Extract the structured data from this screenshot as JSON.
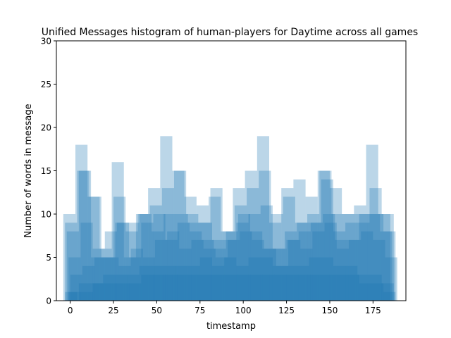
{
  "chart_data": {
    "type": "bar",
    "title": "Unified Messages histogram of human-players for Daytime across all games",
    "xlabel": "timestamp",
    "ylabel": "Number of words in message",
    "xlim": [
      -8,
      194
    ],
    "ylim": [
      0,
      30
    ],
    "x_ticks": [
      0,
      25,
      50,
      75,
      100,
      125,
      150,
      175
    ],
    "y_ticks": [
      0,
      5,
      10,
      15,
      20,
      25,
      30
    ],
    "x_tick_labels": [
      "0",
      "25",
      "50",
      "75",
      "100",
      "125",
      "150",
      "175"
    ],
    "y_tick_labels": [
      "0",
      "5",
      "10",
      "15",
      "20",
      "25",
      "30"
    ],
    "bar_color": "#1f77b4",
    "bar_opacity": 0.3,
    "grid": false,
    "bin_width": 7,
    "layers": [
      {
        "x": [
          -4,
          3,
          10,
          17,
          24,
          31,
          38,
          45,
          52,
          59,
          66,
          73,
          80,
          87,
          94,
          101,
          108,
          115,
          122,
          129,
          136,
          143,
          150,
          157,
          164,
          171,
          178
        ],
        "values": [
          10,
          18,
          12,
          6,
          16,
          5,
          10,
          13,
          19,
          15,
          12,
          11,
          12,
          8,
          13,
          15,
          19,
          9,
          13,
          14,
          12,
          15,
          13,
          10,
          11,
          18,
          10
        ]
      },
      {
        "x": [
          -3,
          4,
          11,
          18,
          25,
          32,
          39,
          46,
          53,
          60,
          67,
          74,
          81,
          88,
          95,
          102,
          109,
          116,
          123,
          130,
          137,
          144,
          151,
          158,
          165,
          172,
          179
        ],
        "values": [
          9,
          15,
          12,
          5,
          12,
          8,
          10,
          11,
          13,
          15,
          10,
          9,
          13,
          8,
          11,
          13,
          15,
          10,
          12,
          9,
          10,
          15,
          10,
          10,
          10,
          10,
          8
        ]
      },
      {
        "x": [
          -2,
          5,
          12,
          19,
          26,
          33,
          40,
          47,
          54,
          61,
          68,
          75,
          82,
          89,
          96,
          103,
          110,
          117,
          124,
          131,
          138,
          145,
          152,
          159,
          166,
          173,
          180
        ],
        "values": [
          8,
          15,
          5,
          5,
          9,
          9,
          10,
          8,
          10,
          10,
          9,
          9,
          7,
          7,
          9,
          10,
          11,
          6,
          8,
          9,
          9,
          14,
          8,
          9,
          9,
          13,
          10
        ]
      },
      {
        "x": [
          -1,
          6,
          13,
          20,
          27,
          34,
          41,
          48,
          55,
          62,
          69,
          76,
          83,
          90,
          97,
          104,
          111,
          118,
          125,
          132,
          139,
          146,
          153,
          160,
          167,
          174,
          181
        ],
        "values": [
          5,
          9,
          6,
          8,
          9,
          5,
          9,
          10,
          7,
          9,
          8,
          7,
          6,
          8,
          10,
          8,
          6,
          6,
          7,
          8,
          9,
          10,
          7,
          7,
          10,
          10,
          8
        ]
      },
      {
        "x": [
          0,
          7,
          14,
          21,
          28,
          35,
          42,
          49,
          56,
          63,
          70,
          77,
          84,
          91,
          98,
          105,
          112,
          119,
          126,
          133,
          140,
          147,
          154,
          161,
          168,
          175,
          182
        ],
        "values": [
          3,
          4,
          5,
          5,
          4,
          6,
          5,
          7,
          8,
          6,
          7,
          6,
          5,
          7,
          8,
          7,
          6,
          4,
          7,
          6,
          8,
          9,
          6,
          7,
          8,
          7,
          5
        ]
      },
      {
        "x": [
          -3,
          5,
          12,
          19,
          26,
          33,
          40,
          47,
          54,
          61,
          68,
          75,
          82,
          89,
          96,
          103,
          110,
          117,
          124,
          131,
          138,
          145,
          152,
          159,
          166,
          173,
          180
        ],
        "values": [
          1,
          2,
          2,
          3,
          3,
          3,
          4,
          4,
          4,
          4,
          4,
          5,
          4,
          5,
          4,
          5,
          5,
          4,
          4,
          4,
          5,
          5,
          4,
          4,
          3,
          3,
          2
        ]
      },
      {
        "x": [
          -1,
          6,
          13,
          20,
          27,
          34,
          41,
          48,
          55,
          62,
          69,
          76,
          83,
          90,
          97,
          104,
          111,
          118,
          125,
          132,
          139,
          146,
          153,
          160,
          167,
          174,
          181
        ],
        "values": [
          1,
          1,
          2,
          2,
          2,
          2,
          3,
          3,
          3,
          3,
          3,
          3,
          3,
          3,
          3,
          3,
          3,
          3,
          3,
          3,
          3,
          3,
          3,
          3,
          2,
          2,
          1
        ]
      }
    ]
  }
}
